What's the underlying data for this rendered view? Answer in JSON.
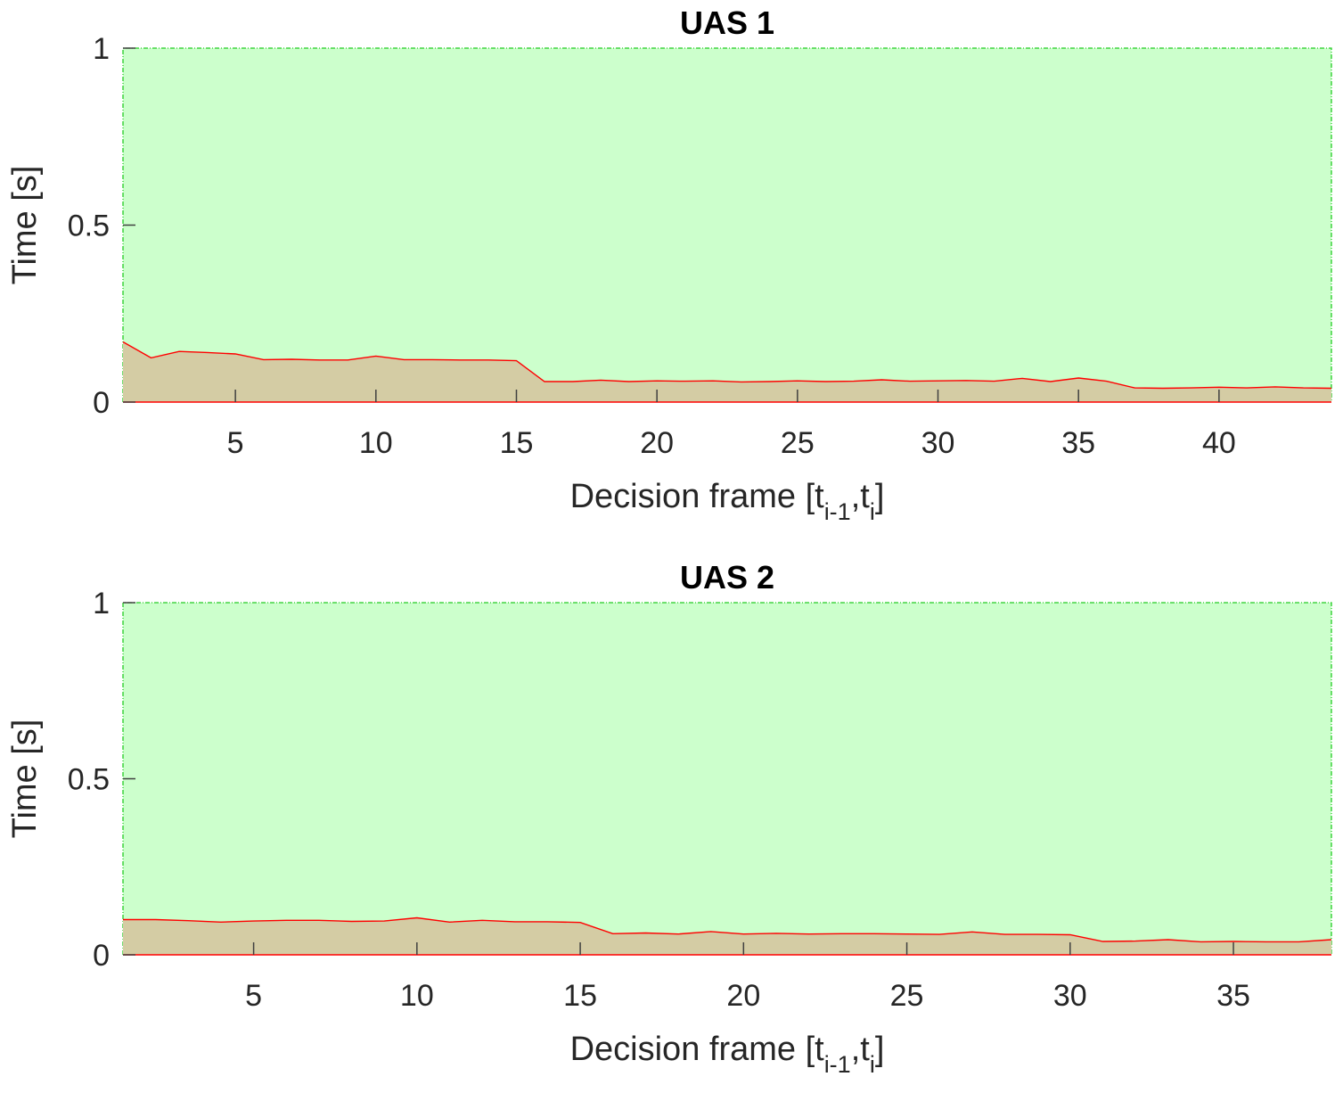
{
  "chart_data": [
    {
      "type": "area",
      "title": "UAS 1",
      "xlabel_main": "Decision frame [t",
      "xlabel_sub1": "i-1",
      "xlabel_mid": ",t",
      "xlabel_sub2": "i",
      "xlabel_end": "]",
      "ylabel": "Time [s]",
      "xlim": [
        1,
        44
      ],
      "ylim": [
        0,
        1
      ],
      "xticks": [
        5,
        10,
        15,
        20,
        25,
        30,
        35,
        40
      ],
      "yticks": [
        0,
        0.5,
        1
      ],
      "ytick_labels": [
        "0",
        "0.5",
        "1"
      ],
      "grid": false,
      "colors": {
        "limit_fill": "#ccffcc",
        "limit_line": "#22cc22",
        "time_fill": "#d4cca4",
        "time_line": "#ff0000"
      },
      "limit_value": 1,
      "x": [
        1,
        2,
        3,
        4,
        5,
        6,
        7,
        8,
        9,
        10,
        11,
        12,
        13,
        14,
        15,
        16,
        17,
        18,
        19,
        20,
        21,
        22,
        23,
        24,
        25,
        26,
        27,
        28,
        29,
        30,
        31,
        32,
        33,
        34,
        35,
        36,
        37,
        38,
        39,
        40,
        41,
        42,
        43,
        44
      ],
      "values": [
        0.17,
        0.125,
        0.143,
        0.14,
        0.136,
        0.12,
        0.121,
        0.119,
        0.119,
        0.13,
        0.12,
        0.12,
        0.119,
        0.119,
        0.117,
        0.058,
        0.058,
        0.062,
        0.058,
        0.06,
        0.059,
        0.06,
        0.057,
        0.058,
        0.06,
        0.058,
        0.059,
        0.063,
        0.059,
        0.06,
        0.061,
        0.059,
        0.067,
        0.058,
        0.068,
        0.059,
        0.04,
        0.039,
        0.04,
        0.042,
        0.04,
        0.043,
        0.04,
        0.039
      ]
    },
    {
      "type": "area",
      "title": "UAS 2",
      "xlabel_main": "Decision frame [t",
      "xlabel_sub1": "i-1",
      "xlabel_mid": ",t",
      "xlabel_sub2": "i",
      "xlabel_end": "]",
      "ylabel": "Time [s]",
      "xlim": [
        1,
        38
      ],
      "ylim": [
        0,
        1
      ],
      "xticks": [
        5,
        10,
        15,
        20,
        25,
        30,
        35
      ],
      "yticks": [
        0,
        0.5,
        1
      ],
      "ytick_labels": [
        "0",
        "0.5",
        "1"
      ],
      "grid": false,
      "colors": {
        "limit_fill": "#ccffcc",
        "limit_line": "#22cc22",
        "time_fill": "#d4cca4",
        "time_line": "#ff0000"
      },
      "limit_value": 1,
      "x": [
        1,
        2,
        3,
        4,
        5,
        6,
        7,
        8,
        9,
        10,
        11,
        12,
        13,
        14,
        15,
        16,
        17,
        18,
        19,
        20,
        21,
        22,
        23,
        24,
        25,
        26,
        27,
        28,
        29,
        30,
        31,
        32,
        33,
        34,
        35,
        36,
        37,
        38
      ],
      "values": [
        0.1,
        0.1,
        0.097,
        0.093,
        0.096,
        0.098,
        0.098,
        0.095,
        0.096,
        0.105,
        0.093,
        0.098,
        0.094,
        0.094,
        0.092,
        0.06,
        0.062,
        0.059,
        0.066,
        0.059,
        0.061,
        0.059,
        0.06,
        0.06,
        0.059,
        0.058,
        0.065,
        0.058,
        0.058,
        0.057,
        0.038,
        0.039,
        0.043,
        0.037,
        0.038,
        0.037,
        0.037,
        0.043
      ]
    }
  ]
}
